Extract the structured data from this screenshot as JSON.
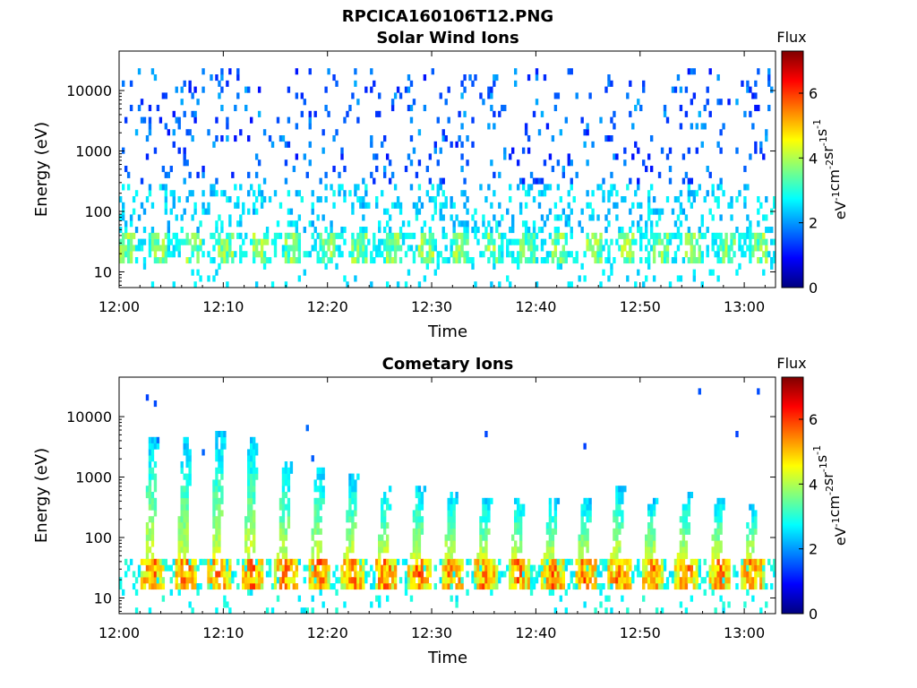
{
  "figure": {
    "title": "RPCICA160106T12.PNG"
  },
  "colorbar": {
    "label": "Flux",
    "unit_main": "eV",
    "unit_parts": [
      {
        "base": "eV",
        "exp": "-1"
      },
      {
        "base": "cm",
        "exp": "-2"
      },
      {
        "base": "sr",
        "exp": "-1"
      },
      {
        "base": "s",
        "exp": "-1"
      }
    ],
    "ticks": [
      "0",
      "2",
      "4",
      "6"
    ],
    "range": [
      0,
      7.3
    ],
    "colormap": "jet"
  },
  "chart_data": [
    {
      "type": "heatmap",
      "title": "Solar Wind Ions",
      "xlabel": "Time",
      "ylabel": "Energy (eV)",
      "x_ticks": [
        "12:00",
        "12:10",
        "12:20",
        "12:30",
        "12:40",
        "12:50",
        "13:00"
      ],
      "x_tick_minutes": [
        0,
        10,
        20,
        30,
        40,
        50,
        60
      ],
      "xlim_minutes": [
        0,
        63
      ],
      "y_ticks": [
        "10",
        "100",
        "1000",
        "10000"
      ],
      "y_tick_values": [
        10,
        100,
        1000,
        10000
      ],
      "y_scale": "log",
      "ylim": [
        5.5,
        45000
      ],
      "pattern": "solar-wind",
      "bands": [
        {
          "energy_min": 15,
          "energy_max": 42,
          "flux_range": [
            2.5,
            4.2
          ],
          "note": "periodic low-energy band"
        },
        {
          "energy_min": 40,
          "energy_max": 300,
          "flux_range": [
            2.0,
            3.0
          ],
          "note": "scattered"
        },
        {
          "energy_min": 300,
          "energy_max": 20000,
          "flux_range": [
            1.0,
            2.2
          ],
          "note": "sparse scattered counts"
        }
      ]
    },
    {
      "type": "heatmap",
      "title": "Cometary Ions",
      "xlabel": "Time",
      "ylabel": "Energy (eV)",
      "x_ticks": [
        "12:00",
        "12:10",
        "12:20",
        "12:30",
        "12:40",
        "12:50",
        "13:00"
      ],
      "x_tick_minutes": [
        0,
        10,
        20,
        30,
        40,
        50,
        60
      ],
      "xlim_minutes": [
        0,
        63
      ],
      "y_ticks": [
        "10",
        "100",
        "1000",
        "10000"
      ],
      "y_tick_values": [
        10,
        100,
        1000,
        10000
      ],
      "y_scale": "log",
      "ylim": [
        5.5,
        45000
      ],
      "pattern": "cometary",
      "burst_minutes": [
        3.2,
        6.4,
        9.6,
        12.8,
        16.0,
        19.2,
        22.4,
        25.6,
        28.8,
        32.0,
        35.2,
        38.4,
        41.6,
        44.8,
        48.0,
        51.2,
        54.4,
        57.6,
        60.8
      ],
      "burst_peak_energy": [
        4000,
        3500,
        4500,
        4000,
        1500,
        1300,
        1000,
        700,
        700,
        500,
        450,
        450,
        400,
        400,
        600,
        400,
        500,
        400,
        350
      ],
      "bands": [
        {
          "energy_min": 15,
          "energy_max": 42,
          "flux_range": [
            4.5,
            6.3
          ],
          "note": "intense low-energy band"
        },
        {
          "energy_min": 42,
          "energy_max": 4500,
          "flux_range": [
            2.0,
            4.0
          ],
          "note": "dispersing bursts, energy decreasing with time"
        }
      ]
    }
  ]
}
